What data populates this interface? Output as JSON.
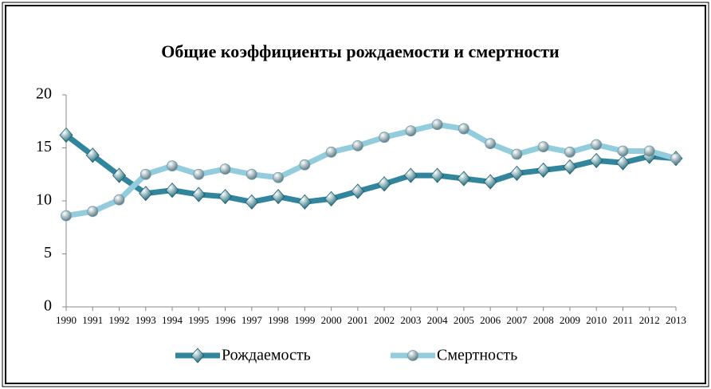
{
  "chart_data": {
    "type": "line",
    "title": "Общие коэффициенты рождаемости и смертности",
    "categories": [
      "1990",
      "1991",
      "1992",
      "1993",
      "1994",
      "1995",
      "1996",
      "1997",
      "1998",
      "1999",
      "2000",
      "2001",
      "2002",
      "2003",
      "2004",
      "2005",
      "2006",
      "2007",
      "2008",
      "2009",
      "2010",
      "2011",
      "2012",
      "2013"
    ],
    "series": [
      {
        "name": "Рождаемость",
        "color": "#31859c",
        "marker": "diamond",
        "values": [
          16.2,
          14.3,
          12.4,
          10.7,
          11.0,
          10.6,
          10.4,
          9.9,
          10.4,
          9.9,
          10.2,
          10.9,
          11.6,
          12.4,
          12.4,
          12.1,
          11.8,
          12.6,
          12.9,
          13.2,
          13.8,
          13.6,
          14.2,
          14.0
        ]
      },
      {
        "name": "Смертность",
        "color": "#93cddd",
        "marker": "circle",
        "values": [
          8.6,
          9.0,
          10.1,
          12.5,
          13.3,
          12.5,
          13.0,
          12.5,
          12.2,
          13.4,
          14.6,
          15.2,
          16.0,
          16.6,
          17.2,
          16.8,
          15.4,
          14.4,
          15.1,
          14.6,
          15.3,
          14.7,
          14.7,
          14.0
        ]
      }
    ],
    "ylim": [
      0,
      20
    ],
    "yticks": [
      0,
      5,
      10,
      15,
      20
    ],
    "legend": "bottom"
  }
}
